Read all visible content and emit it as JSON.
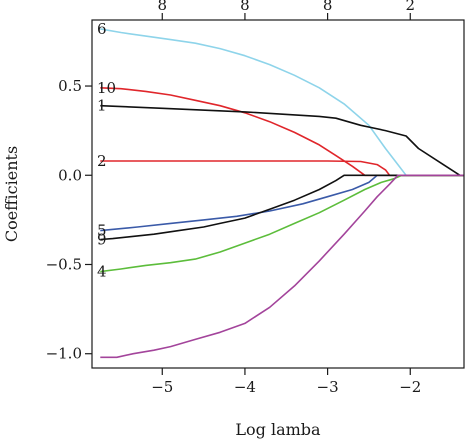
{
  "chart_data": {
    "type": "line",
    "xlabel": "Log lamba",
    "ylabel": "Coefficients",
    "xlim": [
      -5.85,
      -1.35
    ],
    "ylim": [
      -1.08,
      0.87
    ],
    "x_ticks": [
      -5,
      -4,
      -3,
      -2
    ],
    "x_tick_labels": [
      "−5",
      "−4",
      "−3",
      "−2"
    ],
    "y_ticks": [
      -1.0,
      -0.5,
      0.0,
      0.5
    ],
    "y_tick_labels": [
      "−1.0",
      "−0.5",
      "0.0",
      "0.5"
    ],
    "top_axis": {
      "ticks": [
        -5,
        -4,
        -3,
        -2
      ],
      "labels": [
        "8",
        "8",
        "8",
        "2"
      ]
    },
    "series": [
      {
        "name": "6",
        "color": "#8ed4ea",
        "points": [
          [
            -5.75,
            0.82
          ],
          [
            -5.5,
            0.8
          ],
          [
            -5.2,
            0.78
          ],
          [
            -4.9,
            0.76
          ],
          [
            -4.6,
            0.74
          ],
          [
            -4.3,
            0.71
          ],
          [
            -4.0,
            0.67
          ],
          [
            -3.7,
            0.62
          ],
          [
            -3.4,
            0.56
          ],
          [
            -3.1,
            0.49
          ],
          [
            -2.8,
            0.4
          ],
          [
            -2.5,
            0.28
          ],
          [
            -2.3,
            0.15
          ],
          [
            -2.15,
            0.06
          ],
          [
            -2.05,
            0.0
          ],
          [
            -1.35,
            0.0
          ]
        ]
      },
      {
        "name": "10",
        "color": "#e0262b",
        "points": [
          [
            -5.75,
            0.49
          ],
          [
            -5.5,
            0.485
          ],
          [
            -5.2,
            0.47
          ],
          [
            -4.9,
            0.45
          ],
          [
            -4.6,
            0.42
          ],
          [
            -4.3,
            0.39
          ],
          [
            -4.0,
            0.35
          ],
          [
            -3.7,
            0.3
          ],
          [
            -3.4,
            0.24
          ],
          [
            -3.1,
            0.17
          ],
          [
            -2.9,
            0.11
          ],
          [
            -2.7,
            0.05
          ],
          [
            -2.55,
            0.0
          ],
          [
            -1.35,
            0.0
          ]
        ]
      },
      {
        "name": "1",
        "color": "#111111",
        "points": [
          [
            -5.75,
            0.39
          ],
          [
            -5.0,
            0.375
          ],
          [
            -4.0,
            0.355
          ],
          [
            -3.1,
            0.33
          ],
          [
            -2.9,
            0.32
          ],
          [
            -2.6,
            0.28
          ],
          [
            -2.3,
            0.25
          ],
          [
            -2.05,
            0.22
          ],
          [
            -1.9,
            0.15
          ],
          [
            -1.6,
            0.06
          ],
          [
            -1.4,
            0.0
          ],
          [
            -1.35,
            0.0
          ]
        ]
      },
      {
        "name": "2",
        "color": "#e0262b",
        "points": [
          [
            -5.75,
            0.08
          ],
          [
            -5.0,
            0.08
          ],
          [
            -4.0,
            0.08
          ],
          [
            -3.0,
            0.08
          ],
          [
            -2.6,
            0.077
          ],
          [
            -2.4,
            0.06
          ],
          [
            -2.3,
            0.03
          ],
          [
            -2.25,
            0.0
          ],
          [
            -1.35,
            0.0
          ]
        ]
      },
      {
        "name": "5",
        "color": "#3a5aa8",
        "points": [
          [
            -5.75,
            -0.31
          ],
          [
            -5.3,
            -0.29
          ],
          [
            -4.9,
            -0.27
          ],
          [
            -4.5,
            -0.25
          ],
          [
            -4.1,
            -0.23
          ],
          [
            -3.7,
            -0.2
          ],
          [
            -3.3,
            -0.16
          ],
          [
            -3.0,
            -0.12
          ],
          [
            -2.7,
            -0.08
          ],
          [
            -2.5,
            -0.04
          ],
          [
            -2.4,
            0.0
          ],
          [
            -1.35,
            0.0
          ]
        ]
      },
      {
        "name": "9",
        "color": "#111111",
        "points": [
          [
            -5.75,
            -0.36
          ],
          [
            -5.6,
            -0.355
          ],
          [
            -5.4,
            -0.345
          ],
          [
            -5.1,
            -0.33
          ],
          [
            -4.8,
            -0.31
          ],
          [
            -4.5,
            -0.29
          ],
          [
            -4.3,
            -0.27
          ],
          [
            -4.0,
            -0.24
          ],
          [
            -3.7,
            -0.19
          ],
          [
            -3.4,
            -0.14
          ],
          [
            -3.1,
            -0.08
          ],
          [
            -2.9,
            -0.03
          ],
          [
            -2.8,
            0.0
          ],
          [
            -1.35,
            0.0
          ]
        ]
      },
      {
        "name": "4",
        "color": "#5cbd3b",
        "points": [
          [
            -5.75,
            -0.54
          ],
          [
            -5.5,
            -0.525
          ],
          [
            -5.2,
            -0.505
          ],
          [
            -4.9,
            -0.49
          ],
          [
            -4.6,
            -0.47
          ],
          [
            -4.3,
            -0.43
          ],
          [
            -4.0,
            -0.38
          ],
          [
            -3.7,
            -0.33
          ],
          [
            -3.4,
            -0.27
          ],
          [
            -3.1,
            -0.21
          ],
          [
            -2.8,
            -0.14
          ],
          [
            -2.55,
            -0.08
          ],
          [
            -2.35,
            -0.04
          ],
          [
            -2.2,
            -0.02
          ],
          [
            -2.1,
            0.0
          ],
          [
            -1.35,
            0.0
          ]
        ]
      },
      {
        "name": "",
        "color": "#a3449b",
        "points": [
          [
            -5.75,
            -1.02
          ],
          [
            -5.55,
            -1.02
          ],
          [
            -5.35,
            -1.0
          ],
          [
            -5.1,
            -0.98
          ],
          [
            -4.9,
            -0.96
          ],
          [
            -4.6,
            -0.92
          ],
          [
            -4.3,
            -0.88
          ],
          [
            -4.0,
            -0.83
          ],
          [
            -3.7,
            -0.74
          ],
          [
            -3.4,
            -0.62
          ],
          [
            -3.1,
            -0.48
          ],
          [
            -2.8,
            -0.33
          ],
          [
            -2.55,
            -0.2
          ],
          [
            -2.4,
            -0.12
          ],
          [
            -2.25,
            -0.05
          ],
          [
            -2.15,
            0.0
          ],
          [
            -1.35,
            0.0
          ]
        ]
      }
    ]
  }
}
